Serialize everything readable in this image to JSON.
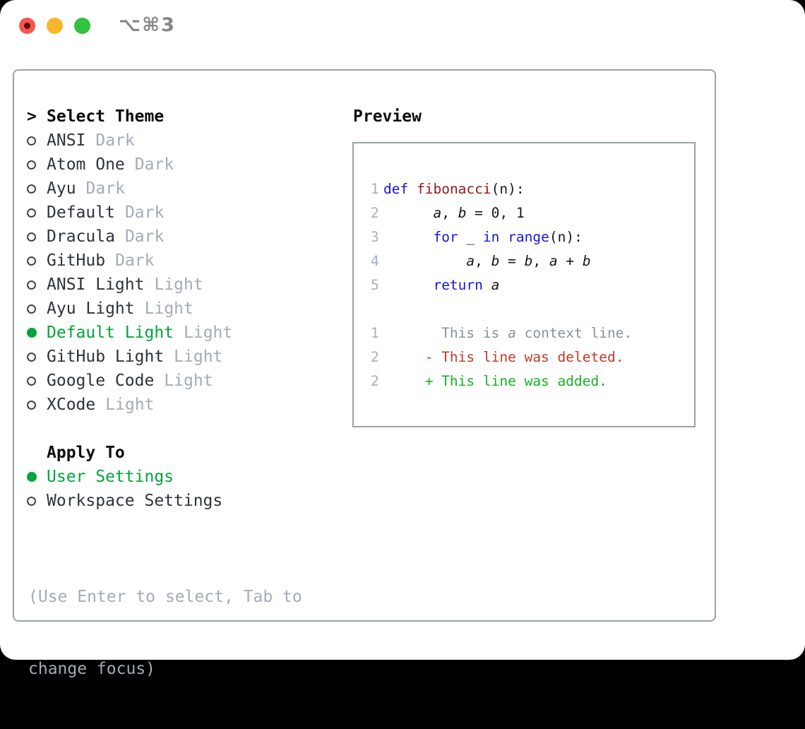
{
  "window": {
    "title": "⌥⌘3",
    "traffic_lights": [
      {
        "name": "close",
        "color": "#f4554d",
        "recording_dot": true
      },
      {
        "name": "minimize",
        "color": "#f6b62b"
      },
      {
        "name": "zoom",
        "color": "#30c13d"
      }
    ]
  },
  "theme_picker": {
    "header": {
      "cursor": ">",
      "label": "Select Theme"
    },
    "items": [
      {
        "name": "ANSI",
        "variant": "Dark",
        "selected": false
      },
      {
        "name": "Atom One",
        "variant": "Dark",
        "selected": false
      },
      {
        "name": "Ayu",
        "variant": "Dark",
        "selected": false
      },
      {
        "name": "Default",
        "variant": "Dark",
        "selected": false
      },
      {
        "name": "Dracula",
        "variant": "Dark",
        "selected": false
      },
      {
        "name": "GitHub",
        "variant": "Dark",
        "selected": false
      },
      {
        "name": "ANSI Light",
        "variant": "Light",
        "selected": false
      },
      {
        "name": "Ayu Light",
        "variant": "Light",
        "selected": false
      },
      {
        "name": "Default Light",
        "variant": "Light",
        "selected": true
      },
      {
        "name": "GitHub Light",
        "variant": "Light",
        "selected": false
      },
      {
        "name": "Google Code",
        "variant": "Light",
        "selected": false
      },
      {
        "name": "XCode",
        "variant": "Light",
        "selected": false
      }
    ],
    "apply_to": {
      "label": "Apply To",
      "options": [
        {
          "label": "User Settings",
          "selected": true
        },
        {
          "label": "Workspace Settings",
          "selected": false
        }
      ]
    },
    "hint_lines": [
      "(Use Enter to select, Tab to",
      "change focus)"
    ]
  },
  "preview": {
    "label": "Preview",
    "code_lines": [
      {
        "ln": "1",
        "tokens": [
          {
            "t": "def",
            "c": "kw"
          },
          {
            "t": " ",
            "c": "pl"
          },
          {
            "t": "fibonacci",
            "c": "fn"
          },
          {
            "t": "(n):",
            "c": "pl"
          }
        ]
      },
      {
        "ln": "2",
        "tokens": [
          {
            "t": "      ",
            "c": "pl"
          },
          {
            "t": "a",
            "c": "va"
          },
          {
            "t": ", ",
            "c": "pl"
          },
          {
            "t": "b",
            "c": "va"
          },
          {
            "t": " = 0, 1",
            "c": "pl"
          }
        ]
      },
      {
        "ln": "3",
        "tokens": [
          {
            "t": "      ",
            "c": "pl"
          },
          {
            "t": "for",
            "c": "kw"
          },
          {
            "t": " _ ",
            "c": "pl"
          },
          {
            "t": "in",
            "c": "kw"
          },
          {
            "t": " ",
            "c": "pl"
          },
          {
            "t": "range",
            "c": "kw"
          },
          {
            "t": "(n):",
            "c": "pl"
          }
        ]
      },
      {
        "ln": "4",
        "tokens": [
          {
            "t": "          ",
            "c": "pl"
          },
          {
            "t": "a",
            "c": "va"
          },
          {
            "t": ", ",
            "c": "pl"
          },
          {
            "t": "b",
            "c": "va"
          },
          {
            "t": " = ",
            "c": "pl"
          },
          {
            "t": "b",
            "c": "va"
          },
          {
            "t": ", ",
            "c": "pl"
          },
          {
            "t": "a",
            "c": "va"
          },
          {
            "t": " + ",
            "c": "pl"
          },
          {
            "t": "b",
            "c": "va"
          }
        ]
      },
      {
        "ln": "5",
        "tokens": [
          {
            "t": "      ",
            "c": "pl"
          },
          {
            "t": "return",
            "c": "kw"
          },
          {
            "t": " ",
            "c": "pl"
          },
          {
            "t": "a",
            "c": "va"
          }
        ]
      },
      {
        "ln": "",
        "tokens": []
      },
      {
        "ln": "1",
        "tokens": [
          {
            "t": "       This is ",
            "c": "ctx"
          },
          {
            "t": "a",
            "c": "ctx-i"
          },
          {
            "t": " context line.",
            "c": "ctx"
          }
        ]
      },
      {
        "ln": "2",
        "tokens": [
          {
            "t": "     - This line was deleted.",
            "c": "del"
          }
        ]
      },
      {
        "ln": "2",
        "tokens": [
          {
            "t": "     + This line was added.",
            "c": "add"
          }
        ]
      }
    ]
  },
  "colors": {
    "selection_green": "#00a63c",
    "added_green": "#12b422",
    "deleted_red": "#c23a28",
    "keyword_blue": "#1616e0",
    "function_red": "#9c1717",
    "muted_gray": "#a4abb6",
    "context_gray": "#8b929c",
    "line_number_gray": "#a7afbc",
    "panel_border": "#9aa2ad"
  }
}
